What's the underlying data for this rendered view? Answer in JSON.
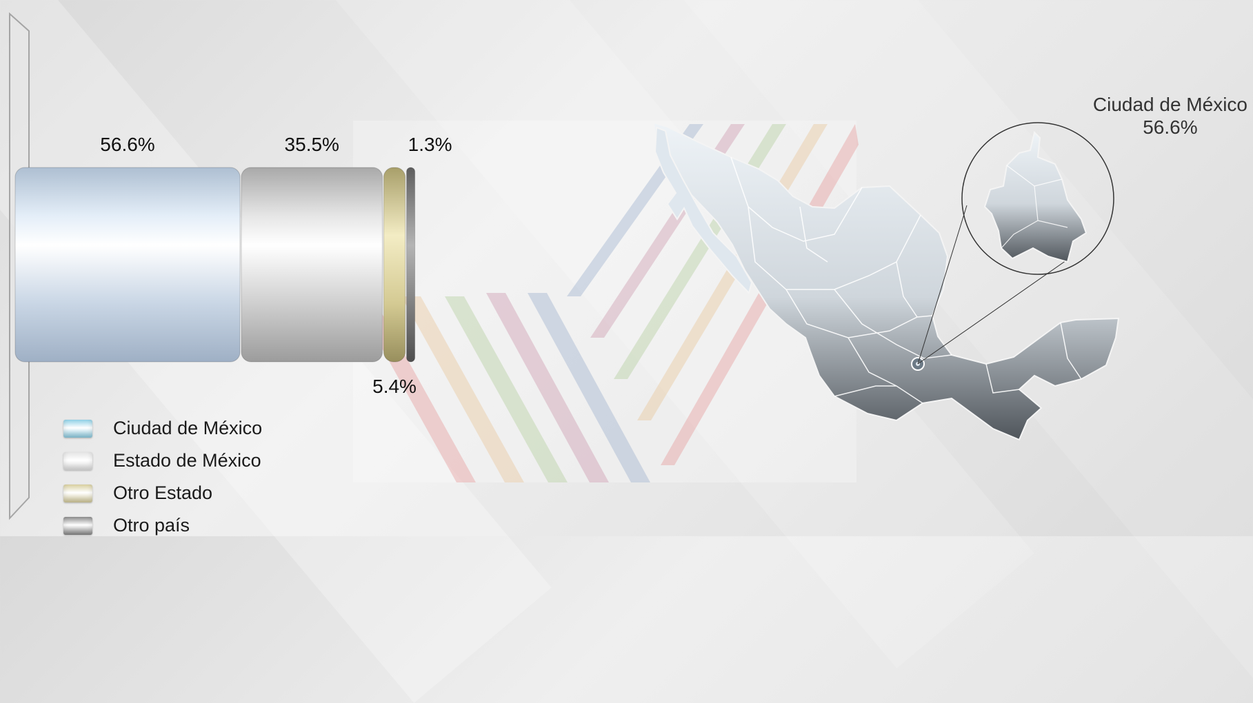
{
  "chart_data": {
    "type": "bar",
    "orientation": "horizontal-stacked",
    "categories": [
      "Ciudad de México",
      "Estado de México",
      "Otro Estado",
      "Otro país"
    ],
    "values": [
      56.6,
      35.5,
      5.4,
      1.3
    ],
    "value_labels": [
      "56.6%",
      "35.5%",
      "5.4%",
      "1.3%"
    ],
    "colors": [
      "#c9dcec",
      "#d2d2d2",
      "#d8cf9e",
      "#8a8a8a"
    ],
    "legend_position": "bottom-left"
  },
  "legend": [
    {
      "label": "Ciudad de México",
      "color": "#8fd0e6"
    },
    {
      "label": "Estado de México",
      "color": "#e4e4e4"
    },
    {
      "label": "Otro Estado",
      "color": "#d8cf9e"
    },
    {
      "label": "Otro país",
      "color": "#8a8a8a"
    }
  ],
  "map": {
    "callout_name": "Ciudad de México",
    "callout_value": "56.6%",
    "icon": "mexico-map"
  }
}
